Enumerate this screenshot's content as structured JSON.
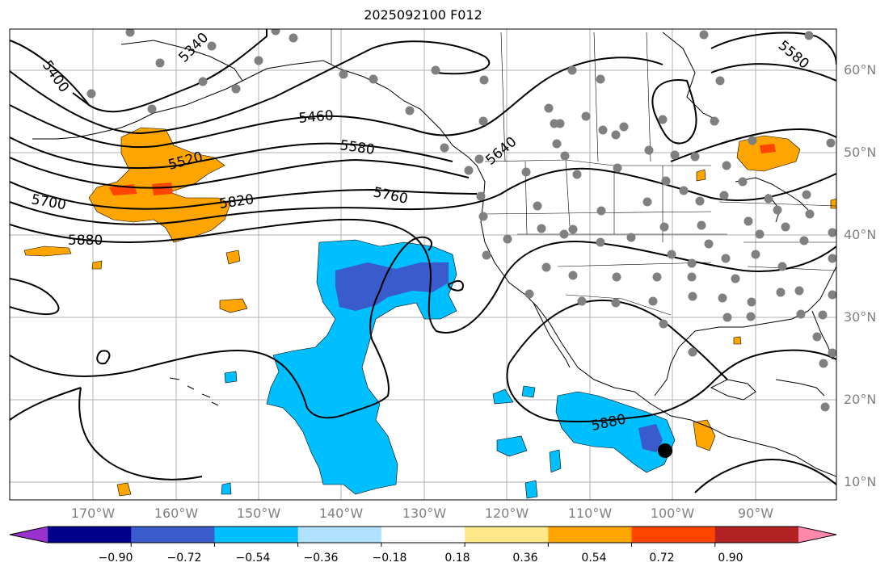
{
  "title": "2025092100 F012",
  "colors": {
    "background": "#ffffff",
    "grid": "#b0b0b0",
    "contour": "#000000",
    "coast": "#000000",
    "station": "#808080",
    "marker": "#000000",
    "label_gray": "#808080"
  },
  "lat_labels": [
    "60°N",
    "50°N",
    "40°N",
    "30°N",
    "20°N",
    "10°N"
  ],
  "lon_labels": [
    "170°W",
    "160°W",
    "150°W",
    "140°W",
    "130°W",
    "120°W",
    "110°W",
    "100°W",
    "90°W"
  ],
  "contour_labels": [
    "5400",
    "5340",
    "5580",
    "5460",
    "5580",
    "5640",
    "5520",
    "5700",
    "5760",
    "5820",
    "5880",
    "5880"
  ],
  "colorbar": {
    "ticks": [
      "−0.90",
      "−0.72",
      "−0.54",
      "−0.36",
      "−0.18",
      "0.18",
      "0.36",
      "0.54",
      "0.72",
      "0.90"
    ],
    "colors": [
      "#9932CC",
      "#00008B",
      "#3A5BCC",
      "#00BFFF",
      "#B0E2FF",
      "#FFFFFF",
      "#FFE88A",
      "#FFA500",
      "#FF4500",
      "#B22222",
      "#FF88AA"
    ]
  },
  "shading": {
    "negative_light": "#00BFFF",
    "negative_dark": "#3A5BCC",
    "positive_light": "#FFA500",
    "positive_dark": "#FF4500"
  }
}
